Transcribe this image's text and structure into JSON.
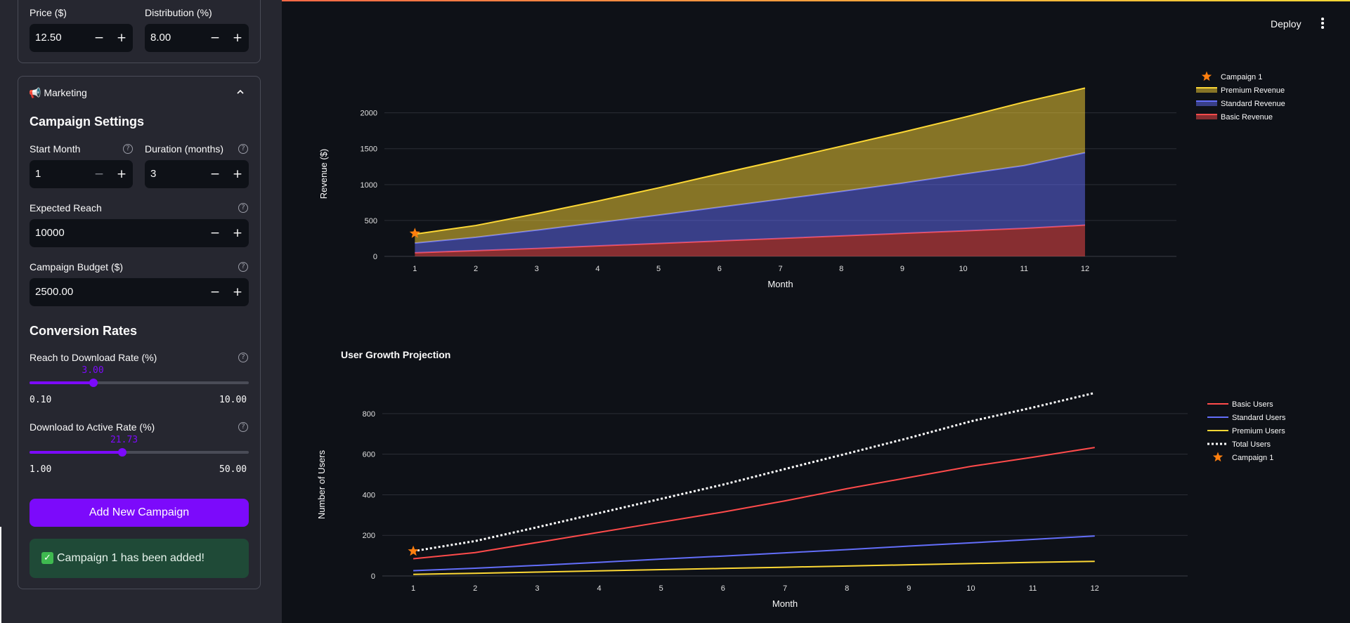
{
  "header": {
    "deploy_label": "Deploy",
    "menu_icon": "kebab-menu-icon"
  },
  "sidebar": {
    "price": {
      "label": "Price ($)",
      "value": "12.50"
    },
    "distribution": {
      "label": "Distribution (%)",
      "value": "8.00"
    },
    "marketing": {
      "header_label": "📢 Marketing",
      "campaign_heading": "Campaign Settings",
      "start_month": {
        "label": "Start Month",
        "value": "1"
      },
      "duration": {
        "label": "Duration (months)",
        "value": "3"
      },
      "reach": {
        "label": "Expected Reach",
        "value": "10000"
      },
      "budget": {
        "label": "Campaign Budget ($)",
        "value": "2500.00"
      },
      "conversion_heading": "Conversion Rates",
      "reach_to_download": {
        "label": "Reach to Download Rate (%)",
        "value": "3.00",
        "value_num": 3.0,
        "min": "0.10",
        "max": "10.00",
        "min_num": 0.1,
        "max_num": 10.0
      },
      "download_to_active": {
        "label": "Download to Active Rate (%)",
        "value": "21.73",
        "value_num": 21.73,
        "min": "1.00",
        "max": "50.00",
        "min_num": 1.0,
        "max_num": 50.0
      },
      "add_button": "Add New Campaign",
      "success_message": "Campaign 1 has been added!"
    }
  },
  "colors": {
    "accent": "#7c0afb",
    "basic": "#ff4b4b",
    "standard": "#636efa",
    "premium": "#fdd835",
    "campaign": "#ff7f0e"
  },
  "chart_data": [
    {
      "type": "area",
      "title": "",
      "xlabel": "Month",
      "ylabel": "Revenue ($)",
      "x": [
        1,
        2,
        3,
        4,
        5,
        6,
        7,
        8,
        9,
        10,
        11,
        12
      ],
      "xlim": [
        0.5,
        13.5
      ],
      "ylim": [
        0,
        2300
      ],
      "yticks": [
        0,
        500,
        1000,
        1500,
        2000
      ],
      "stacked": true,
      "series": [
        {
          "name": "Basic Revenue",
          "color": "#ff4b4b",
          "values": [
            50,
            80,
            110,
            145,
            180,
            215,
            250,
            285,
            320,
            355,
            390,
            435
          ]
        },
        {
          "name": "Standard Revenue",
          "color": "#636efa",
          "values": [
            135,
            185,
            255,
            325,
            395,
            470,
            545,
            620,
            700,
            790,
            875,
            1010
          ]
        },
        {
          "name": "Premium Revenue",
          "color": "#fdd835",
          "values": [
            125,
            165,
            230,
            300,
            380,
            465,
            545,
            630,
            710,
            790,
            885,
            900
          ]
        }
      ],
      "markers": [
        {
          "name": "Campaign 1",
          "x": 1,
          "y": 320,
          "symbol": "star",
          "color": "#ff7f0e"
        }
      ],
      "legend": {
        "position": "top-right",
        "order": [
          "Campaign 1",
          "Premium Revenue",
          "Standard Revenue",
          "Basic Revenue"
        ]
      },
      "grid": true
    },
    {
      "type": "line",
      "title": "User Growth Projection",
      "xlabel": "Month",
      "ylabel": "Number of Users",
      "x": [
        1,
        2,
        3,
        4,
        5,
        6,
        7,
        8,
        9,
        10,
        11,
        12
      ],
      "xlim": [
        0.5,
        13.5
      ],
      "ylim": [
        0,
        900
      ],
      "yticks": [
        0,
        200,
        400,
        600,
        800
      ],
      "series": [
        {
          "name": "Basic Users",
          "color": "#ff4b4b",
          "dash": "solid",
          "values": [
            85,
            115,
            165,
            215,
            265,
            315,
            370,
            430,
            485,
            540,
            585,
            633
          ]
        },
        {
          "name": "Standard Users",
          "color": "#636efa",
          "dash": "solid",
          "values": [
            26,
            38,
            52,
            67,
            83,
            98,
            114,
            130,
            147,
            163,
            180,
            197
          ]
        },
        {
          "name": "Premium Users",
          "color": "#fdd835",
          "dash": "solid",
          "values": [
            8,
            13,
            19,
            25,
            31,
            37,
            43,
            49,
            55,
            61,
            67,
            72
          ]
        },
        {
          "name": "Total Users",
          "color": "#ffffff",
          "dash": "dot",
          "values": [
            122,
            172,
            240,
            310,
            380,
            450,
            527,
            603,
            680,
            762,
            830,
            902
          ]
        }
      ],
      "markers": [
        {
          "name": "Campaign 1",
          "x": 1,
          "y": 122,
          "symbol": "star",
          "color": "#ff7f0e"
        }
      ],
      "legend": {
        "position": "top-right",
        "order": [
          "Basic Users",
          "Standard Users",
          "Premium Users",
          "Total Users",
          "Campaign 1"
        ]
      },
      "grid": true
    }
  ]
}
